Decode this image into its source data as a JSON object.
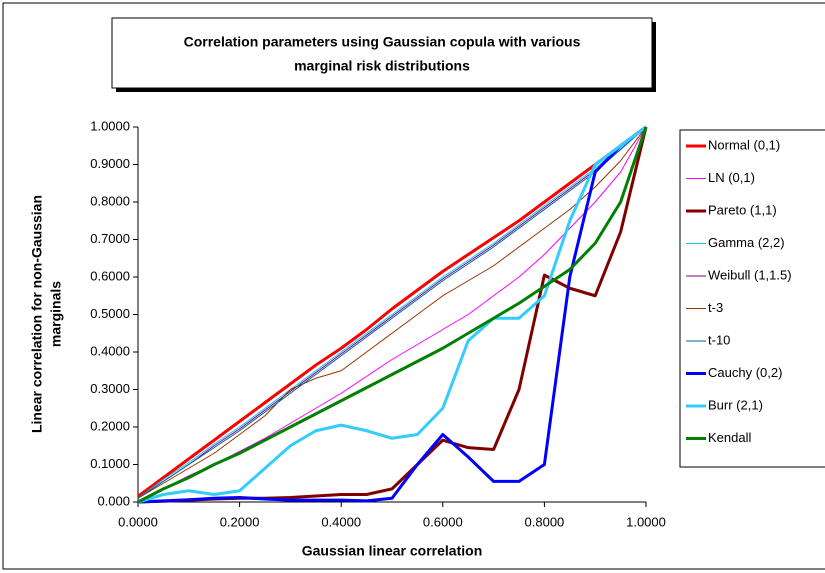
{
  "chart_data": {
    "type": "line",
    "title": [
      "Correlation parameters using Gaussian copula with various",
      "marginal risk distributions"
    ],
    "x_label": "Gaussian linear correlation",
    "y_label": [
      "Linear correlation for non-Gaussian",
      "marginals"
    ],
    "x": [
      0,
      0.05,
      0.1,
      0.15,
      0.2,
      0.25,
      0.3,
      0.35,
      0.4,
      0.45,
      0.5,
      0.55,
      0.6,
      0.65,
      0.7,
      0.75,
      0.8,
      0.85,
      0.9,
      0.95,
      1.0
    ],
    "series": [
      {
        "name": "Normal (0,1)",
        "color": "#ff0000",
        "width": 3,
        "values": [
          0.015,
          0.065,
          0.115,
          0.165,
          0.215,
          0.265,
          0.315,
          0.365,
          0.41,
          0.46,
          0.515,
          0.565,
          0.615,
          0.66,
          0.705,
          0.75,
          0.8,
          0.85,
          0.9,
          0.95,
          1.0
        ]
      },
      {
        "name": "LN (0,1)",
        "color": "#ff00ff",
        "width": 1,
        "values": [
          0,
          0.035,
          0.07,
          0.1,
          0.135,
          0.17,
          0.21,
          0.25,
          0.29,
          0.335,
          0.38,
          0.42,
          0.46,
          0.5,
          0.55,
          0.6,
          0.66,
          0.73,
          0.8,
          0.88,
          1.0
        ]
      },
      {
        "name": "Pareto (1,1)",
        "color": "#800000",
        "width": 3,
        "values": [
          0,
          0.002,
          0.005,
          0.008,
          0.01,
          0.01,
          0.012,
          0.016,
          0.02,
          0.02,
          0.035,
          0.1,
          0.165,
          0.145,
          0.14,
          0.3,
          0.605,
          0.57,
          0.55,
          0.72,
          1.0
        ]
      },
      {
        "name": "Gamma (2,2)",
        "color": "#00ccff",
        "width": 1,
        "values": [
          0.01,
          0.06,
          0.105,
          0.155,
          0.2,
          0.25,
          0.3,
          0.35,
          0.4,
          0.45,
          0.5,
          0.55,
          0.6,
          0.645,
          0.69,
          0.74,
          0.79,
          0.84,
          0.89,
          0.945,
          1.0
        ]
      },
      {
        "name": "Weibull (1,1.5)",
        "color": "#800080",
        "width": 1,
        "values": [
          0.01,
          0.055,
          0.1,
          0.15,
          0.195,
          0.245,
          0.295,
          0.345,
          0.395,
          0.445,
          0.495,
          0.545,
          0.595,
          0.64,
          0.685,
          0.735,
          0.785,
          0.835,
          0.885,
          0.94,
          1.0
        ]
      },
      {
        "name": "t-3",
        "color": "#993300",
        "width": 1,
        "values": [
          0.01,
          0.05,
          0.09,
          0.13,
          0.18,
          0.23,
          0.3,
          0.33,
          0.35,
          0.4,
          0.45,
          0.5,
          0.55,
          0.59,
          0.63,
          0.68,
          0.73,
          0.78,
          0.84,
          0.91,
          1.0
        ]
      },
      {
        "name": "t-10",
        "color": "#006699",
        "width": 1,
        "values": [
          0.01,
          0.055,
          0.1,
          0.145,
          0.19,
          0.24,
          0.29,
          0.34,
          0.39,
          0.44,
          0.49,
          0.54,
          0.59,
          0.635,
          0.68,
          0.73,
          0.78,
          0.83,
          0.88,
          0.94,
          1.0
        ]
      },
      {
        "name": "Cauchy (0,2)",
        "color": "#0000ff",
        "width": 3,
        "values": [
          0,
          0.003,
          0.006,
          0.01,
          0.012,
          0.008,
          0.005,
          0.005,
          0.005,
          0.003,
          0.01,
          0.1,
          0.18,
          0.12,
          0.055,
          0.055,
          0.1,
          0.6,
          0.88,
          0.95,
          1.0
        ]
      },
      {
        "name": "Burr  (2,1)",
        "color": "#33ccff",
        "width": 3,
        "values": [
          0,
          0.02,
          0.03,
          0.02,
          0.03,
          0.09,
          0.15,
          0.19,
          0.205,
          0.19,
          0.17,
          0.18,
          0.25,
          0.43,
          0.49,
          0.49,
          0.55,
          0.75,
          0.9,
          0.95,
          1.0
        ]
      },
      {
        "name": "Kendall",
        "color": "#008000",
        "width": 3,
        "values": [
          0,
          0.035,
          0.065,
          0.1,
          0.13,
          0.165,
          0.2,
          0.235,
          0.27,
          0.305,
          0.34,
          0.375,
          0.41,
          0.45,
          0.49,
          0.53,
          0.575,
          0.62,
          0.69,
          0.8,
          1.0
        ]
      }
    ],
    "xlim": [
      0,
      1
    ],
    "ylim": [
      0,
      1
    ],
    "xticks": [
      {
        "value": 0,
        "label": "0.0000"
      },
      {
        "value": 0.2,
        "label": "0.2000"
      },
      {
        "value": 0.4,
        "label": "0.4000"
      },
      {
        "value": 0.6,
        "label": "0.6000"
      },
      {
        "value": 0.8,
        "label": "0.8000"
      },
      {
        "value": 1,
        "label": "1.0000"
      }
    ],
    "yticks": [
      {
        "value": 0,
        "label": "0.000"
      },
      {
        "value": 0.1,
        "label": "0.1000"
      },
      {
        "value": 0.2,
        "label": "0.2000"
      },
      {
        "value": 0.3,
        "label": "0.3000"
      },
      {
        "value": 0.4,
        "label": "0.4000"
      },
      {
        "value": 0.5,
        "label": "0.5000"
      },
      {
        "value": 0.6,
        "label": "0.6000"
      },
      {
        "value": 0.7,
        "label": "0.7000"
      },
      {
        "value": 0.8,
        "label": "0.8000"
      },
      {
        "value": 0.9,
        "label": "0.9000"
      },
      {
        "value": 1,
        "label": "1.0000"
      }
    ],
    "grid": false,
    "legend": "right"
  }
}
